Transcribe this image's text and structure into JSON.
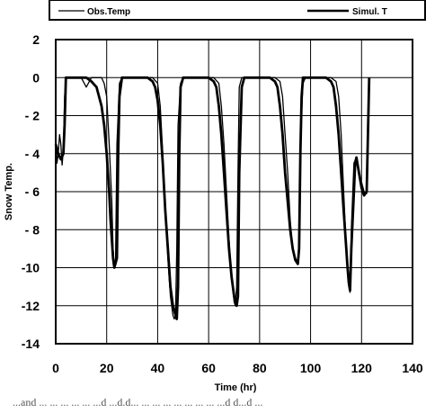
{
  "chart_data": {
    "type": "line",
    "title": "",
    "xlabel": "Time (hr)",
    "ylabel": "Snow Temp.",
    "xlim": [
      0,
      140
    ],
    "ylim": [
      -14,
      2
    ],
    "x_ticks": [
      "0",
      "20",
      "40",
      "60",
      "80",
      "100",
      "120",
      "140"
    ],
    "y_ticks": [
      "2",
      "0",
      "- 2",
      "- 4",
      "- 6",
      "- 8",
      "-10",
      "-12",
      "-14"
    ],
    "x_tick_values": [
      0,
      20,
      40,
      60,
      80,
      100,
      120,
      140
    ],
    "y_tick_values": [
      2,
      0,
      -2,
      -4,
      -6,
      -8,
      -10,
      -12,
      -14
    ],
    "grid": true,
    "legend_position": "top",
    "series": [
      {
        "name": "Obs.Temp",
        "x": [
          0,
          0.5,
          1,
          1.5,
          2,
          2.5,
          3,
          3.5,
          4,
          5,
          6,
          8,
          10,
          12,
          14,
          16,
          18,
          19,
          20,
          21,
          22,
          22.5,
          23,
          23.5,
          24,
          25,
          26,
          27,
          28,
          30,
          32,
          34,
          36,
          38,
          40,
          41,
          42,
          43,
          44,
          45,
          46,
          46.5,
          47,
          47.5,
          48,
          49,
          50,
          52,
          54,
          56,
          58,
          60,
          62,
          64,
          65,
          66,
          67,
          68,
          69,
          70,
          70.5,
          71,
          71.5,
          72,
          73,
          74,
          76,
          78,
          80,
          82,
          84,
          86,
          88,
          89,
          90,
          91,
          92,
          93,
          94,
          95,
          95.5,
          96,
          97,
          98,
          100,
          102,
          104,
          106,
          108,
          110,
          111,
          112,
          113,
          114,
          115,
          115.5,
          116,
          117,
          118,
          119,
          120,
          121,
          122,
          123
        ],
        "values": [
          -3,
          -4.5,
          -4,
          -3,
          -3.5,
          -4.6,
          -3.8,
          -1,
          0,
          0,
          0,
          0,
          0,
          -0.5,
          0,
          0,
          0,
          -0.3,
          -1,
          -3.5,
          -6.5,
          -9,
          -10,
          -9.5,
          -3.5,
          -0.3,
          0,
          0,
          0,
          0,
          0,
          0,
          0,
          0,
          -0.3,
          -1.5,
          -4,
          -7,
          -9.5,
          -11.5,
          -12.5,
          -12.7,
          -12.5,
          -9,
          -2.5,
          -0.3,
          0,
          0,
          0,
          0,
          0,
          0,
          0,
          -0.3,
          -1.5,
          -3.5,
          -6,
          -8.5,
          -10.5,
          -11.8,
          -12,
          -11,
          -5,
          -0.5,
          0,
          0,
          0,
          0,
          0,
          0,
          0,
          0,
          -0.2,
          -1,
          -3,
          -5,
          -7.5,
          -9,
          -9.5,
          -9.7,
          -9,
          -3.5,
          -0.3,
          0,
          0,
          0,
          0,
          0,
          0,
          -0.2,
          -1,
          -3,
          -6,
          -9,
          -11,
          -11.3,
          -8,
          -4.5,
          -4.2,
          -5,
          -5.5,
          -6,
          -6.1,
          -1
        ]
      },
      {
        "name": "Simul. T",
        "x": [
          0,
          1,
          2,
          3,
          3.5,
          4,
          5,
          6,
          8,
          10,
          12,
          14,
          16,
          18,
          19,
          20,
          21,
          21.5,
          22,
          22.5,
          23,
          24,
          24.5,
          25,
          25.5,
          26,
          28,
          30,
          32,
          34,
          36,
          38,
          39,
          40,
          41,
          42,
          43,
          44,
          45,
          46,
          47,
          47.5,
          48,
          48.5,
          49,
          50,
          52,
          54,
          56,
          58,
          60,
          62,
          63,
          64,
          65,
          66,
          67,
          68,
          69,
          70,
          71,
          71.5,
          72,
          73,
          74,
          76,
          78,
          80,
          82,
          84,
          86,
          87,
          88,
          89,
          90,
          91,
          92,
          93,
          94,
          95,
          95.5,
          96,
          96.5,
          97,
          98,
          100,
          102,
          104,
          106,
          108,
          109,
          110,
          111,
          112,
          113,
          114,
          114.5,
          115,
          115.5,
          116,
          117,
          117.5,
          118,
          119,
          120,
          121,
          122,
          123
        ],
        "values": [
          -3.5,
          -4,
          -4.3,
          -4,
          -2.5,
          0,
          0,
          0,
          0,
          0,
          0,
          -0.2,
          -0.5,
          -1.5,
          -2.5,
          -4,
          -6,
          -7.5,
          -8.5,
          -9.5,
          -10,
          -9.5,
          -4,
          -1,
          -0.5,
          0,
          0,
          0,
          0,
          0,
          0,
          -0.2,
          -0.5,
          -1.2,
          -2.5,
          -4.5,
          -7,
          -9,
          -11,
          -12,
          -12.5,
          -12.7,
          -11,
          -4,
          -0.5,
          0,
          0,
          0,
          0,
          0,
          0,
          -0.2,
          -0.5,
          -1.5,
          -3,
          -5,
          -7,
          -9,
          -10.5,
          -11.5,
          -12,
          -11.5,
          -5,
          -0.5,
          0,
          0,
          0,
          0,
          0,
          0,
          -0.2,
          -0.5,
          -1.5,
          -3,
          -5,
          -6.5,
          -8,
          -9,
          -9.6,
          -9.8,
          -9,
          -4,
          -1,
          0,
          0,
          0,
          0,
          0,
          0,
          -0.2,
          -0.5,
          -1.5,
          -3,
          -5,
          -7,
          -9,
          -10,
          -10.8,
          -11.2,
          -9,
          -6,
          -4.5,
          -4.2,
          -5,
          -5.8,
          -6.2,
          -6,
          0
        ]
      }
    ]
  },
  "caption": "...and ... ... ... ... ... ...d ...d.d... ... ... ... ... ... ... ... ...d d...d ..."
}
